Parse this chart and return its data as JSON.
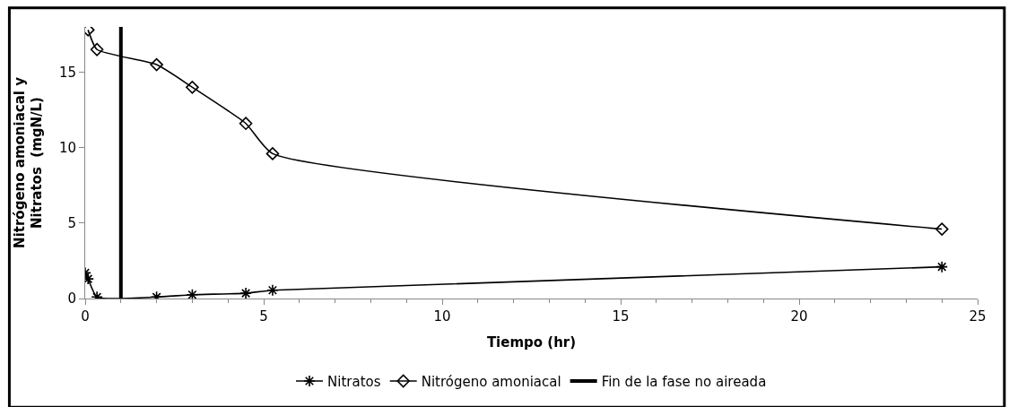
{
  "chart_data": {
    "type": "line",
    "xlabel": "Tiempo (hr)",
    "ylabel": "Nitrógeno amoniacal y\nNitratos  (mgN/L)",
    "xlim": [
      0,
      25
    ],
    "xticks": [
      0,
      5,
      10,
      15,
      20,
      25
    ],
    "ylim": [
      0,
      18
    ],
    "yticks": [
      0,
      5,
      10,
      15
    ],
    "legend": "bottom",
    "line_style": "solid",
    "series": [
      {
        "name": "Nitratos",
        "color": "#000000",
        "marker": "cross",
        "x": [
          0,
          0.08,
          0.33,
          2,
          3,
          4.5,
          5.25,
          24
        ],
        "values": [
          1.7,
          1.3,
          0.1,
          0.1,
          0.25,
          0.35,
          0.55,
          2.1
        ]
      },
      {
        "name": "Nitrógeno amoniacal",
        "color": "#000000",
        "marker": "diamond",
        "x": [
          0.08,
          0.33,
          2,
          3,
          4.5,
          5.25,
          24
        ],
        "values": [
          17.8,
          16.5,
          15.5,
          14,
          11.6,
          9.6,
          4.6
        ]
      },
      {
        "name": "Fin de la fase no aireada",
        "color": "#000000",
        "marker": "none",
        "x": [
          1,
          1
        ],
        "values": [
          0,
          18
        ]
      }
    ]
  }
}
